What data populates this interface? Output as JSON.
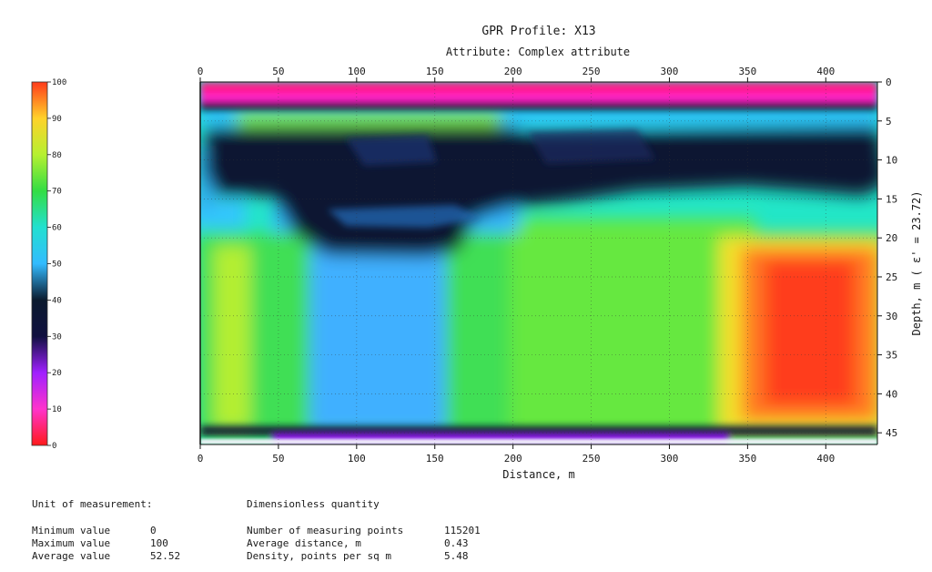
{
  "chart_data": {
    "type": "heatmap",
    "title": "GPR Profile: X13",
    "subtitle": "Attribute:  Complex attribute",
    "xlabel": "Distance, m",
    "ylabel": "Depth, m ( ε' = 23.72)",
    "xlim": [
      0,
      433
    ],
    "ylim": [
      0,
      46.5
    ],
    "x_ticks": [
      0,
      50,
      100,
      150,
      200,
      250,
      300,
      350,
      400
    ],
    "y_ticks": [
      0,
      5,
      10,
      15,
      20,
      25,
      30,
      35,
      40,
      45
    ],
    "grid": true,
    "colorbar": {
      "min": 0,
      "max": 100,
      "ticks": [
        0,
        10,
        20,
        30,
        40,
        50,
        60,
        70,
        80,
        90,
        100
      ],
      "colors": [
        "#ff1a1a",
        "#ff33cc",
        "#a020ff",
        "#101040",
        "#0b1a2e",
        "#33bbff",
        "#22e0d0",
        "#33dd44",
        "#b6f030",
        "#ffd22a",
        "#ff3a1a"
      ]
    }
  },
  "stats": {
    "unit_label": "Unit of measurement:",
    "unit_value": "Dimensionless quantity",
    "rows_left": [
      {
        "label": "Minimum value",
        "value": "0"
      },
      {
        "label": "Maximum value",
        "value": "100"
      },
      {
        "label": "Average value",
        "value": "52.52"
      }
    ],
    "rows_right": [
      {
        "label": "Number of measuring points",
        "value": "115201"
      },
      {
        "label": "Average distance, m",
        "value": "0.43"
      },
      {
        "label": "Density, points per sq m",
        "value": "5.48"
      }
    ]
  }
}
